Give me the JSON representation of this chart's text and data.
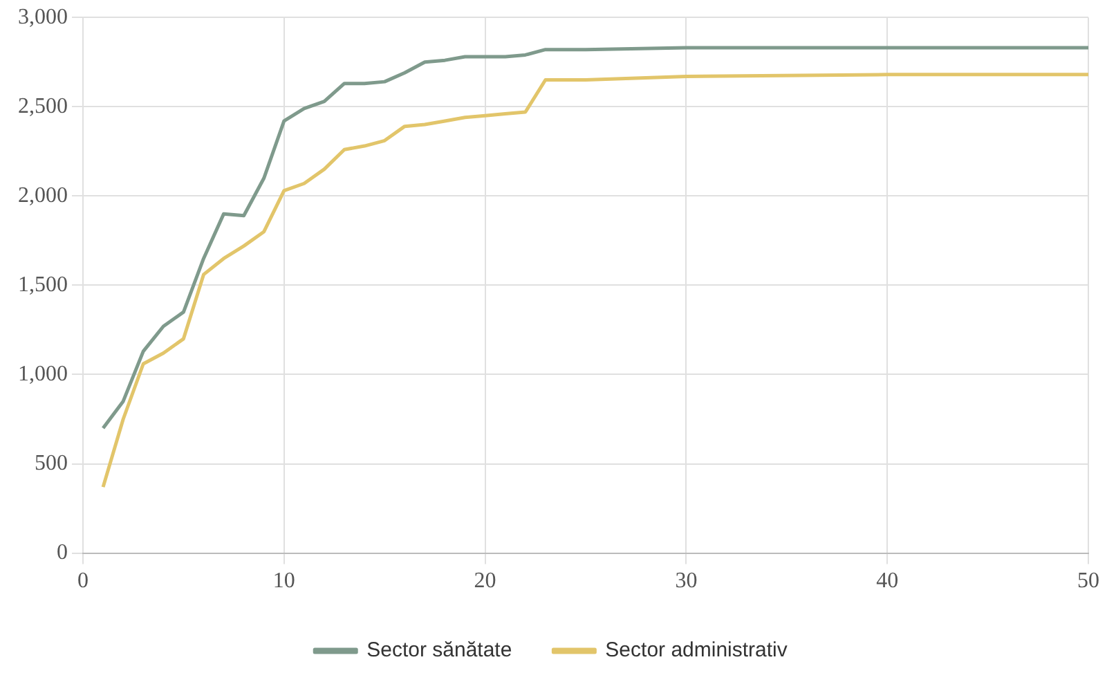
{
  "chart_data": {
    "type": "line",
    "xlim": [
      0,
      50
    ],
    "xticks": [
      0,
      10,
      20,
      30,
      40,
      50
    ],
    "ylim": [
      0,
      3000
    ],
    "yticks": [
      {
        "value": 0,
        "label": "0"
      },
      {
        "value": 500,
        "label": "500"
      },
      {
        "value": 1000,
        "label": "1,000"
      },
      {
        "value": 1500,
        "label": "1,500"
      },
      {
        "value": 2000,
        "label": "2,000"
      },
      {
        "value": 2500,
        "label": "2,500"
      },
      {
        "value": 3000,
        "label": "3,000"
      }
    ],
    "grid": true,
    "legend": "bottom",
    "marker": "none",
    "series": [
      {
        "name": "Sector sănătate",
        "color": "#7f9a8c",
        "x": [
          1,
          2,
          3,
          4,
          5,
          6,
          7,
          8,
          9,
          10,
          11,
          12,
          13,
          14,
          15,
          16,
          17,
          18,
          19,
          20,
          21,
          22,
          23,
          25,
          30,
          40,
          50
        ],
        "values": [
          700,
          850,
          1130,
          1270,
          1350,
          1650,
          1900,
          1890,
          2100,
          2420,
          2490,
          2530,
          2630,
          2630,
          2640,
          2690,
          2750,
          2760,
          2780,
          2780,
          2780,
          2790,
          2820,
          2820,
          2830,
          2830,
          2830
        ]
      },
      {
        "name": "Sector administrativ",
        "color": "#e2c56a",
        "x": [
          1,
          2,
          3,
          4,
          5,
          6,
          7,
          8,
          9,
          10,
          11,
          12,
          13,
          14,
          15,
          16,
          17,
          18,
          19,
          20,
          21,
          22,
          23,
          25,
          30,
          40,
          50
        ],
        "values": [
          370,
          750,
          1060,
          1120,
          1200,
          1560,
          1650,
          1720,
          1800,
          2030,
          2070,
          2150,
          2260,
          2280,
          2310,
          2390,
          2400,
          2420,
          2440,
          2450,
          2460,
          2470,
          2650,
          2650,
          2670,
          2680,
          2680
        ]
      }
    ]
  }
}
